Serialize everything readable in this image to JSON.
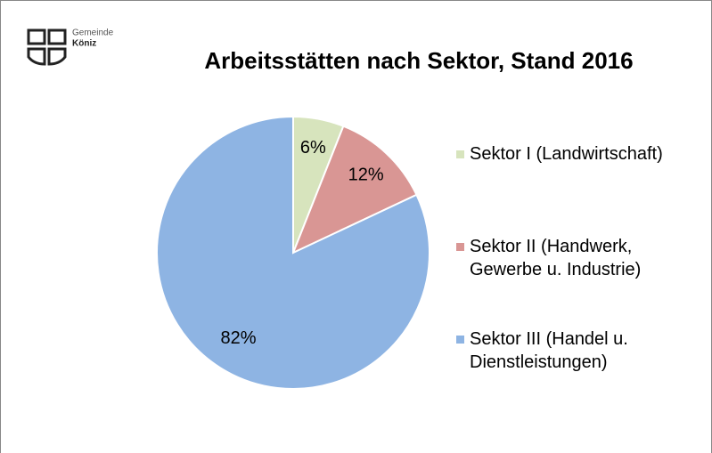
{
  "logo": {
    "org": "Gemeinde",
    "name": "Köniz"
  },
  "chart_data": {
    "type": "pie",
    "title": "Arbeitsstätten nach Sektor, Stand 2016",
    "categories": [
      "Sektor I (Landwirtschaft)",
      "Sektor II (Handwerk, Gewerbe u. Industrie)",
      "Sektor III (Handel u. Dienstleistungen)"
    ],
    "values": [
      6,
      12,
      82
    ],
    "value_labels": [
      "6%",
      "12%",
      "82%"
    ],
    "colors": [
      "#d7e4bd",
      "#d99694",
      "#8eb4e3"
    ],
    "legend": "right"
  }
}
